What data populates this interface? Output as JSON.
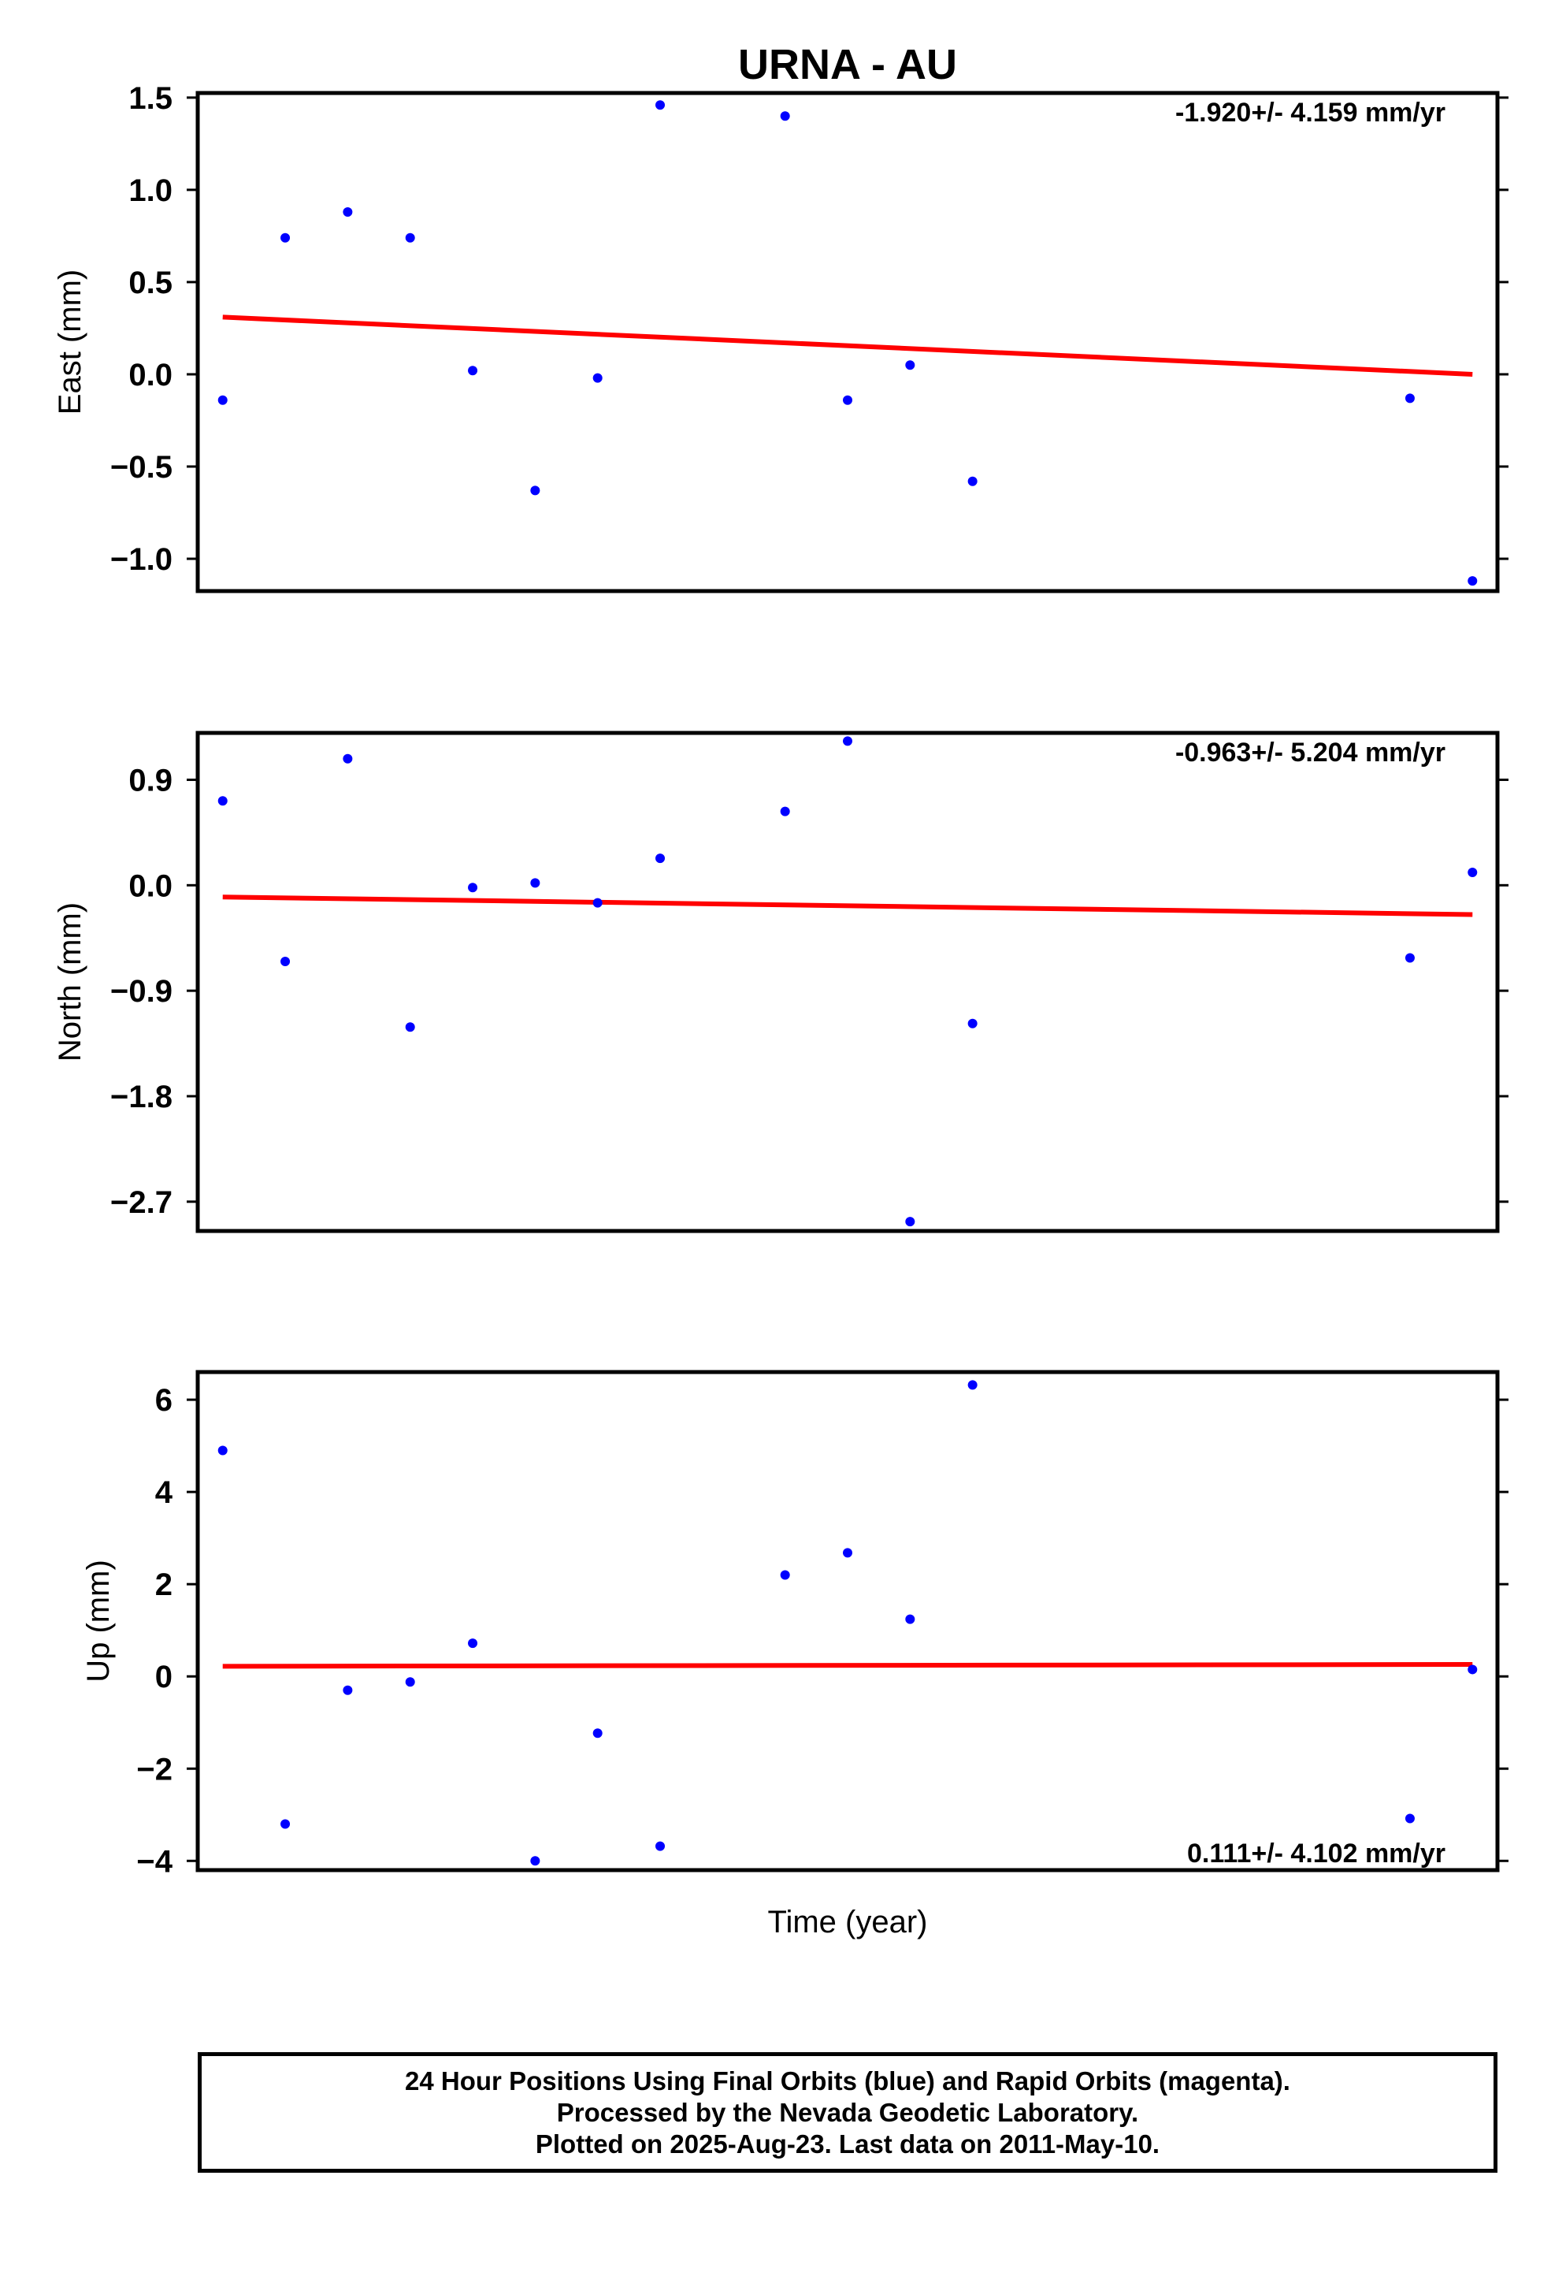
{
  "chart_data": {
    "title": "URNA - AU",
    "xlabel": "Time (year)",
    "type": "scatter",
    "panels": [
      {
        "key": "east",
        "ylabel": "East (mm)",
        "ylim": [
          -1.175,
          1.525
        ],
        "yticks": [
          1.5,
          1.0,
          0.5,
          0.0,
          -0.5,
          -1.0
        ],
        "ytick_labels": [
          "1.5",
          "1.0",
          "0.5",
          "0.0",
          "−0.5",
          "−1.0"
        ],
        "rate_label": "-1.920+/- 4.159 mm/yr",
        "rate_position": "top-right",
        "x": [
          1,
          2,
          3,
          4,
          5,
          6,
          7,
          8,
          10,
          11,
          12,
          13,
          20,
          21
        ],
        "y": [
          -0.14,
          0.74,
          0.88,
          0.74,
          0.02,
          -0.63,
          -0.02,
          1.46,
          1.4,
          -0.14,
          0.05,
          -0.58,
          -0.13,
          -1.12
        ],
        "trend": {
          "x": [
            1,
            21
          ],
          "y": [
            0.31,
            0.0
          ]
        }
      },
      {
        "key": "north",
        "ylabel": "North (mm)",
        "ylim": [
          -2.95,
          1.3
        ],
        "yticks": [
          0.9,
          0.0,
          -0.9,
          -1.8,
          -2.7
        ],
        "ytick_labels": [
          "0.9",
          "0.0",
          "−0.9",
          "−1.8",
          "−2.7"
        ],
        "rate_label": "-0.963+/- 5.204 mm/yr",
        "rate_position": "top-right",
        "x": [
          1,
          2,
          3,
          4,
          5,
          6,
          7,
          8,
          10,
          11,
          12,
          13,
          20,
          21
        ],
        "y": [
          0.72,
          -0.65,
          1.08,
          -1.21,
          -0.02,
          0.02,
          -0.15,
          0.23,
          0.63,
          1.23,
          -2.87,
          -1.18,
          -0.62,
          0.11
        ],
        "trend": {
          "x": [
            1,
            21
          ],
          "y": [
            -0.1,
            -0.25
          ]
        }
      },
      {
        "key": "up",
        "ylabel": "Up (mm)",
        "ylim": [
          -4.2,
          6.6
        ],
        "yticks": [
          6,
          4,
          2,
          0,
          -2,
          -4
        ],
        "ytick_labels": [
          "6",
          "4",
          "2",
          "0",
          "−2",
          "−4"
        ],
        "rate_label": "0.111+/- 4.102 mm/yr",
        "rate_position": "bottom-right",
        "x": [
          1,
          2,
          3,
          4,
          5,
          6,
          7,
          8,
          10,
          11,
          12,
          13,
          20,
          21
        ],
        "y": [
          4.9,
          -3.2,
          -0.3,
          -0.12,
          0.72,
          -4.0,
          -1.23,
          -3.68,
          2.2,
          2.68,
          1.24,
          6.32,
          -3.08,
          0.15
        ],
        "trend": {
          "x": [
            1,
            21
          ],
          "y": [
            0.22,
            0.26
          ]
        }
      }
    ],
    "x_range": [
      0.6,
      21.4
    ],
    "colors": {
      "points": "#0000ff",
      "trend": "#ff0000",
      "frame": "#000000"
    }
  },
  "footer": {
    "line1": "24 Hour Positions Using Final Orbits (blue) and Rapid Orbits (magenta).",
    "line2": "Processed by the Nevada Geodetic Laboratory.",
    "line3": "Plotted on 2025-Aug-23. Last data on 2011-May-10."
  }
}
